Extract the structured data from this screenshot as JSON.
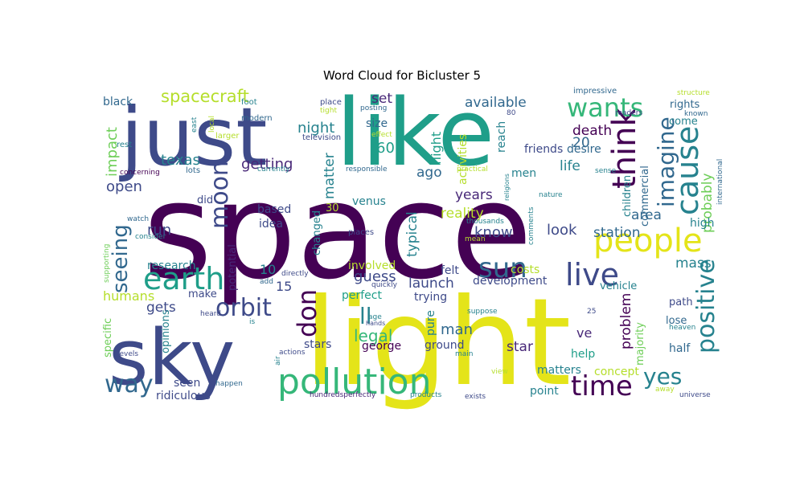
{
  "figure": {
    "title": "Word Cloud for Bicluster 5"
  },
  "palette": {
    "darkpurple": "#440154",
    "purple": "#482878",
    "indigo": "#3e4a89",
    "blue": "#31688e",
    "teal": "#26828e",
    "tealgreen": "#1f9e89",
    "green": "#35b779",
    "lightgreen": "#6ece58",
    "yellowgreen": "#b5de2b",
    "yellow": "#e4e419"
  },
  "words": [
    {
      "text": "space",
      "color": "darkpurple"
    },
    {
      "text": "light",
      "color": "yellow"
    },
    {
      "text": "like",
      "color": "tealgreen"
    },
    {
      "text": "just",
      "color": "indigo"
    },
    {
      "text": "sky",
      "color": "indigo"
    },
    {
      "text": "pollution",
      "color": "green"
    },
    {
      "text": "people",
      "color": "yellow"
    },
    {
      "text": "think",
      "color": "darkpurple"
    },
    {
      "text": "cause",
      "color": "teal"
    },
    {
      "text": "earth",
      "color": "tealgreen"
    },
    {
      "text": "live",
      "color": "indigo"
    },
    {
      "text": "sun",
      "color": "blue"
    },
    {
      "text": "orbit",
      "color": "indigo"
    },
    {
      "text": "wants",
      "color": "green"
    },
    {
      "text": "time",
      "color": "darkpurple"
    },
    {
      "text": "don",
      "color": "darkpurple"
    },
    {
      "text": "moon",
      "color": "indigo"
    },
    {
      "text": "imagine",
      "color": "blue"
    },
    {
      "text": "positive",
      "color": "teal"
    },
    {
      "text": "yes",
      "color": "teal"
    },
    {
      "text": "way",
      "color": "blue"
    },
    {
      "text": "seeing",
      "color": "blue"
    },
    {
      "text": "ll",
      "color": "teal"
    },
    {
      "text": "legal",
      "color": "green"
    },
    {
      "text": "spacecraft",
      "color": "yellowgreen"
    },
    {
      "text": "probably",
      "color": "lightgreen"
    },
    {
      "text": "impact",
      "color": "lightgreen"
    },
    {
      "text": "texas",
      "color": "teal"
    },
    {
      "text": "getting",
      "color": "purple"
    },
    {
      "text": "night",
      "color": "teal"
    },
    {
      "text": "available",
      "color": "blue"
    },
    {
      "text": "set",
      "color": "purple"
    },
    {
      "text": "flight",
      "color": "tealgreen"
    },
    {
      "text": "activities",
      "color": "yellowgreen"
    },
    {
      "text": "60",
      "color": "tealgreen"
    },
    {
      "text": "ago",
      "color": "blue"
    },
    {
      "text": "size",
      "color": "blue"
    },
    {
      "text": "matter",
      "color": "teal"
    },
    {
      "text": "reach",
      "color": "teal"
    },
    {
      "text": "death",
      "color": "darkpurple"
    },
    {
      "text": "desire",
      "color": "blue"
    },
    {
      "text": "20",
      "color": "blue"
    },
    {
      "text": "friends",
      "color": "indigo"
    },
    {
      "text": "life",
      "color": "teal"
    },
    {
      "text": "men",
      "color": "teal"
    },
    {
      "text": "rights",
      "color": "blue"
    },
    {
      "text": "come",
      "color": "teal"
    },
    {
      "text": "black",
      "color": "blue"
    },
    {
      "text": "open",
      "color": "indigo"
    },
    {
      "text": "years",
      "color": "purple"
    },
    {
      "text": "reality",
      "color": "yellowgreen"
    },
    {
      "text": "know",
      "color": "indigo"
    },
    {
      "text": "look",
      "color": "indigo"
    },
    {
      "text": "area",
      "color": "blue"
    },
    {
      "text": "station",
      "color": "blue"
    },
    {
      "text": "children",
      "color": "teal"
    },
    {
      "text": "commercial",
      "color": "blue"
    },
    {
      "text": "high",
      "color": "teal"
    },
    {
      "text": "mass",
      "color": "teal"
    },
    {
      "text": "run",
      "color": "indigo"
    },
    {
      "text": "did",
      "color": "indigo"
    },
    {
      "text": "based",
      "color": "indigo"
    },
    {
      "text": "idea",
      "color": "indigo"
    },
    {
      "text": "30",
      "color": "yellowgreen"
    },
    {
      "text": "venus",
      "color": "teal"
    },
    {
      "text": "changed",
      "color": "teal"
    },
    {
      "text": "typical",
      "color": "teal"
    },
    {
      "text": "research",
      "color": "teal"
    },
    {
      "text": "humans",
      "color": "yellowgreen"
    },
    {
      "text": "potential",
      "color": "purple"
    },
    {
      "text": "10",
      "color": "teal"
    },
    {
      "text": "15",
      "color": "indigo"
    },
    {
      "text": "guess",
      "color": "indigo"
    },
    {
      "text": "launch",
      "color": "indigo"
    },
    {
      "text": "involved",
      "color": "yellowgreen"
    },
    {
      "text": "felt",
      "color": "indigo"
    },
    {
      "text": "costs",
      "color": "yellowgreen"
    },
    {
      "text": "development",
      "color": "indigo"
    },
    {
      "text": "gets",
      "color": "indigo"
    },
    {
      "text": "make",
      "color": "indigo"
    },
    {
      "text": "perfect",
      "color": "tealgreen"
    },
    {
      "text": "trying",
      "color": "indigo"
    },
    {
      "text": "man",
      "color": "blue"
    },
    {
      "text": "pure",
      "color": "teal"
    },
    {
      "text": "problem",
      "color": "darkpurple"
    },
    {
      "text": "vehicle",
      "color": "teal"
    },
    {
      "text": "majority",
      "color": "lightgreen"
    },
    {
      "text": "path",
      "color": "indigo"
    },
    {
      "text": "lose",
      "color": "blue"
    },
    {
      "text": "star",
      "color": "purple"
    },
    {
      "text": "ve",
      "color": "purple"
    },
    {
      "text": "half",
      "color": "blue"
    },
    {
      "text": "help",
      "color": "tealgreen"
    },
    {
      "text": "concept",
      "color": "yellowgreen"
    },
    {
      "text": "matters",
      "color": "teal"
    },
    {
      "text": "point",
      "color": "teal"
    },
    {
      "text": "ground",
      "color": "indigo"
    },
    {
      "text": "george",
      "color": "darkpurple"
    },
    {
      "text": "stars",
      "color": "indigo"
    },
    {
      "text": "opinions",
      "color": "teal"
    },
    {
      "text": "seen",
      "color": "indigo"
    },
    {
      "text": "ridiculous",
      "color": "indigo"
    },
    {
      "text": "specific",
      "color": "lightgreen"
    },
    {
      "text": "foot",
      "color": "teal"
    },
    {
      "text": "east",
      "color": "teal"
    },
    {
      "text": "rest",
      "color": "teal"
    },
    {
      "text": "lots",
      "color": "blue"
    },
    {
      "text": "concerning",
      "color": "darkpurple"
    },
    {
      "text": "local",
      "color": "yellowgreen"
    },
    {
      "text": "larger",
      "color": "yellowgreen"
    },
    {
      "text": "modern",
      "color": "blue"
    },
    {
      "text": "television",
      "color": "indigo"
    },
    {
      "text": "currently",
      "color": "teal"
    },
    {
      "text": "place",
      "color": "indigo"
    },
    {
      "text": "tight",
      "color": "yellowgreen"
    },
    {
      "text": "posting",
      "color": "blue"
    },
    {
      "text": "effect",
      "color": "yellowgreen"
    },
    {
      "text": "responsible",
      "color": "blue"
    },
    {
      "text": "practical",
      "color": "yellowgreen"
    },
    {
      "text": "religions",
      "color": "teal"
    },
    {
      "text": "comments",
      "color": "teal"
    },
    {
      "text": "thousands",
      "color": "teal"
    },
    {
      "text": "mean",
      "color": "yellowgreen"
    },
    {
      "text": "80",
      "color": "indigo"
    },
    {
      "text": "impressive",
      "color": "blue"
    },
    {
      "text": "readers",
      "color": "indigo"
    },
    {
      "text": "structure",
      "color": "yellowgreen"
    },
    {
      "text": "known",
      "color": "blue"
    },
    {
      "text": "sense",
      "color": "teal"
    },
    {
      "text": "nature",
      "color": "teal"
    },
    {
      "text": "international",
      "color": "blue"
    },
    {
      "text": "watch",
      "color": "blue"
    },
    {
      "text": "consider",
      "color": "teal"
    },
    {
      "text": "supporting",
      "color": "lightgreen"
    },
    {
      "text": "places",
      "color": "indigo"
    },
    {
      "text": "directly",
      "color": "indigo"
    },
    {
      "text": "add",
      "color": "blue"
    },
    {
      "text": "quickly",
      "color": "indigo"
    },
    {
      "text": "age",
      "color": "teal"
    },
    {
      "text": "hands",
      "color": "indigo"
    },
    {
      "text": "suppose",
      "color": "teal"
    },
    {
      "text": "heard",
      "color": "indigo"
    },
    {
      "text": "is",
      "color": "teal"
    },
    {
      "text": "air",
      "color": "teal"
    },
    {
      "text": "actions",
      "color": "indigo"
    },
    {
      "text": "levels",
      "color": "indigo"
    },
    {
      "text": "main",
      "color": "teal"
    },
    {
      "text": "happen",
      "color": "blue"
    },
    {
      "text": "view",
      "color": "yellowgreen"
    },
    {
      "text": "25",
      "color": "indigo"
    },
    {
      "text": "heaven",
      "color": "teal"
    },
    {
      "text": "away",
      "color": "yellowgreen"
    },
    {
      "text": "hundredsperfectly",
      "color": "purple"
    },
    {
      "text": "products",
      "color": "teal"
    },
    {
      "text": "exists",
      "color": "indigo"
    },
    {
      "text": "universe",
      "color": "indigo"
    }
  ]
}
